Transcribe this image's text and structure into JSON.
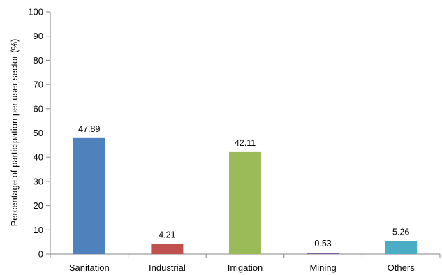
{
  "chart_data": {
    "type": "bar",
    "title": "",
    "xlabel": "",
    "ylabel": "Percentage of participation per user sector (%)",
    "categories": [
      "Sanitation",
      "Industrial",
      "Irrigation",
      "Mining",
      "Others"
    ],
    "values": [
      47.89,
      4.21,
      42.11,
      0.53,
      5.26
    ],
    "data_labels": [
      "47.89",
      "4.21",
      "42.11",
      "0.53",
      "5.26"
    ],
    "colors": [
      "#4F81BD",
      "#C0504D",
      "#9BBB59",
      "#8064A2",
      "#4BACC6"
    ],
    "ylim": [
      0,
      100
    ],
    "yticks": [
      0,
      10,
      20,
      30,
      40,
      50,
      60,
      70,
      80,
      90,
      100
    ],
    "ytick_labels": [
      "0",
      "10",
      "20",
      "30",
      "40",
      "50",
      "60",
      "70",
      "80",
      "90",
      "100"
    ],
    "grid": false,
    "legend": "none"
  }
}
